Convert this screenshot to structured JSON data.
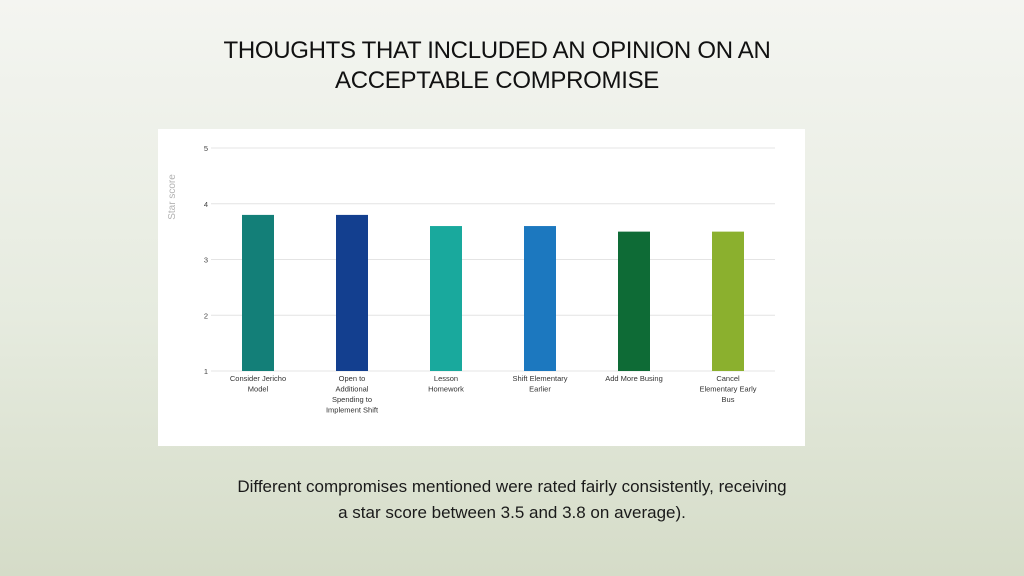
{
  "slide": {
    "title_lines": [
      "THOUGHTS THAT INCLUDED AN OPINION ON AN",
      "ACCEPTABLE COMPROMISE"
    ],
    "caption_lines": [
      "Different compromises mentioned were rated fairly consistently, receiving",
      "a star score between 3.5 and 3.8 on average)."
    ]
  },
  "chart_data": {
    "type": "bar",
    "title": "",
    "xlabel": "",
    "ylabel": "Star score",
    "ylim": [
      1,
      5
    ],
    "yticks": [
      1,
      2,
      3,
      4,
      5
    ],
    "grid": true,
    "categories": [
      [
        "Consider Jericho",
        "Model"
      ],
      [
        "Open to",
        "Additional",
        "Spending to",
        "Implement Shift"
      ],
      [
        "Lesson",
        "Homework"
      ],
      [
        "Shift Elementary",
        "Earlier"
      ],
      [
        "Add More Busing"
      ],
      [
        "Cancel",
        "Elementary Early",
        "Bus"
      ]
    ],
    "values": [
      3.8,
      3.8,
      3.6,
      3.6,
      3.5,
      3.5
    ],
    "colors": [
      "#137f78",
      "#133f8f",
      "#19a99d",
      "#1c78bf",
      "#0e6b36",
      "#8bb02e"
    ]
  }
}
